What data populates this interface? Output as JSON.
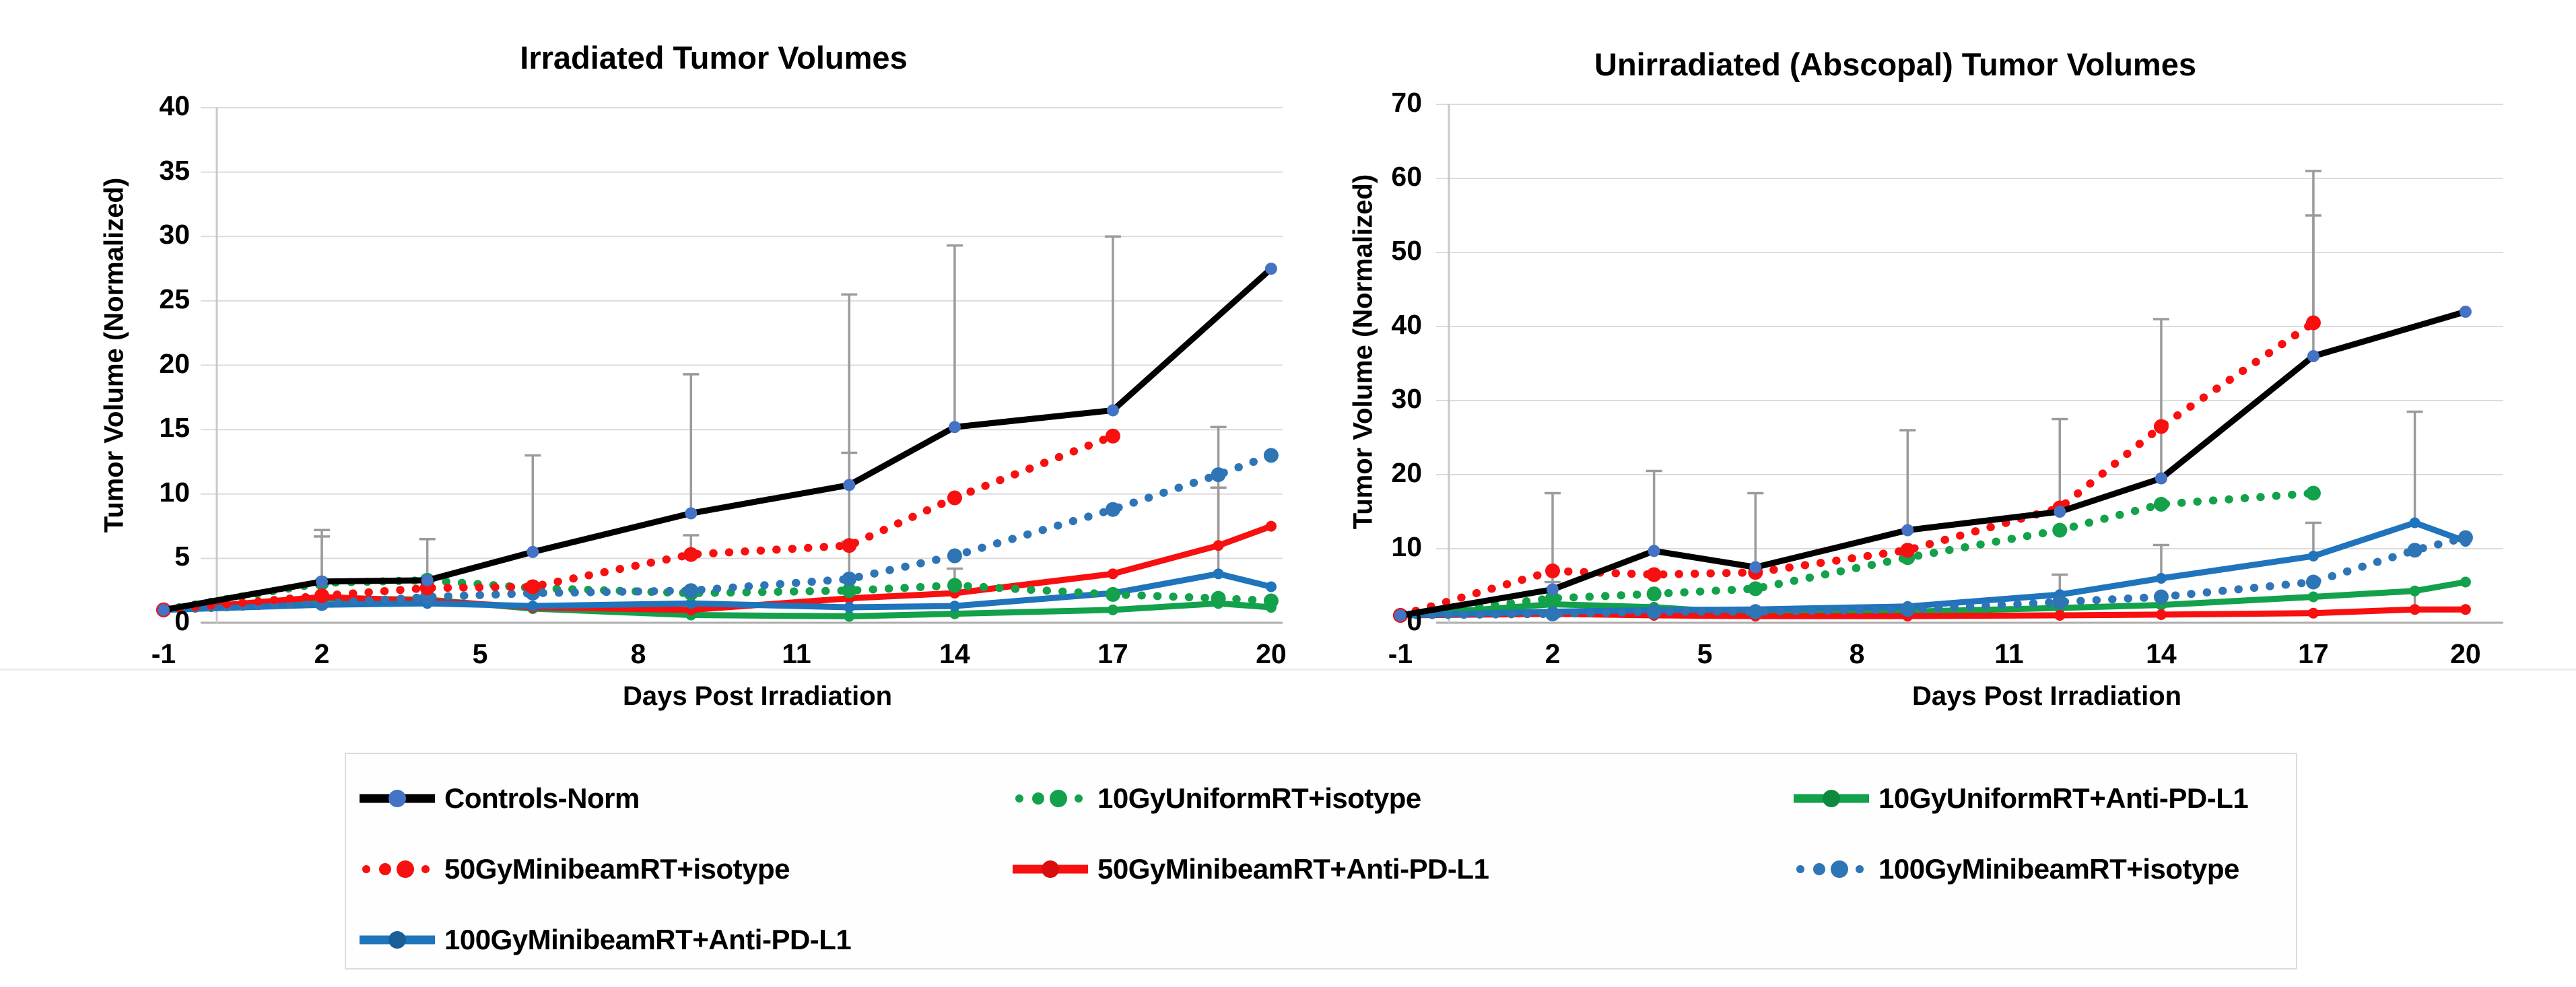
{
  "figure": {
    "background": "#ffffff",
    "accent_colors": {
      "black": "#000000",
      "green": "#13A14B",
      "red": "#F80F10",
      "blue": "#1F74BC",
      "control_marker": "#4472C4",
      "error_bar": "#9b9b9b"
    }
  },
  "chart_data": [
    {
      "type": "line",
      "title": "Irradiated Tumor Volumes",
      "ylabel": "Tumor Volume (Normalized)",
      "xlabel": "Days Post Irradiation",
      "ylim": [
        0,
        40
      ],
      "yticks": [
        0,
        5,
        10,
        15,
        20,
        25,
        30,
        35,
        40
      ],
      "xticks": [
        -1,
        2,
        5,
        8,
        11,
        14,
        17,
        20
      ],
      "grid": true,
      "x": [
        -1,
        2,
        4,
        6,
        9,
        12,
        14,
        17,
        19,
        20
      ],
      "series": [
        {
          "name": "10GyUniformRT+Anti-PD-L1",
          "color": "#13A14B",
          "style": "solid",
          "values": [
            1,
            1.9,
            1.8,
            1.1,
            0.6,
            0.5,
            0.7,
            1.0,
            1.5,
            1.2
          ],
          "err_top": [
            null,
            null,
            null,
            null,
            null,
            null,
            null,
            null,
            null,
            null
          ]
        },
        {
          "name": "50GyMinibeamRT+Anti-PD-L1",
          "color": "#F80F10",
          "style": "solid",
          "values": [
            1,
            2.0,
            1.7,
            1.2,
            1.0,
            1.9,
            2.3,
            3.8,
            6.0,
            7.5
          ],
          "err_top": [
            null,
            null,
            null,
            null,
            null,
            null,
            null,
            null,
            10.5,
            null
          ]
        },
        {
          "name": "100GyMinibeamRT+Anti-PD-L1",
          "color": "#1F74BC",
          "style": "solid",
          "values": [
            1,
            1.4,
            1.5,
            1.3,
            1.5,
            1.2,
            1.3,
            2.3,
            3.8,
            2.8
          ],
          "err_top": [
            null,
            null,
            null,
            null,
            null,
            null,
            null,
            null,
            15.2,
            null
          ]
        },
        {
          "name": "10GyUniformRT+isotype",
          "color": "#13A14B",
          "style": "dotted",
          "values": [
            1,
            3.1,
            3.3,
            2.7,
            2.3,
            2.5,
            2.9,
            2.2,
            1.9,
            1.7
          ],
          "err_top": [
            null,
            6.7,
            null,
            null,
            null,
            null,
            4.2,
            null,
            null,
            null
          ]
        },
        {
          "name": "100GyMinibeamRT+isotype",
          "color": "#2E75B6",
          "style": "dotted",
          "values": [
            1,
            1.5,
            2.0,
            2.3,
            2.5,
            3.4,
            5.2,
            8.8,
            11.5,
            13.0
          ],
          "err_top": [
            null,
            null,
            null,
            null,
            null,
            6.3,
            null,
            null,
            null,
            null
          ]
        },
        {
          "name": "50GyMinibeamRT+isotype",
          "color": "#F80F10",
          "style": "dotted",
          "values": [
            1,
            2.1,
            2.7,
            2.8,
            5.3,
            6.0,
            9.7,
            14.5,
            null,
            null
          ],
          "err_top": [
            null,
            null,
            null,
            null,
            6.8,
            13.2,
            null,
            null,
            null,
            null
          ]
        },
        {
          "name": "Controls-Norm",
          "color": "#000000",
          "style": "solid",
          "marker": "#4472C4",
          "values": [
            1,
            3.2,
            3.3,
            5.5,
            8.5,
            10.7,
            15.2,
            16.5,
            null,
            27.5
          ],
          "err_top": [
            null,
            7.2,
            6.5,
            13.0,
            19.3,
            25.5,
            29.3,
            30.0,
            null,
            null
          ]
        }
      ]
    },
    {
      "type": "line",
      "title": "Unirradiated (Abscopal) Tumor Volumes",
      "ylabel": "Tumor Volume (Normalized)",
      "xlabel": "Days Post Irradiation",
      "ylim": [
        0,
        70
      ],
      "yticks": [
        0,
        10,
        20,
        30,
        40,
        50,
        60,
        70
      ],
      "xticks": [
        -1,
        2,
        5,
        8,
        11,
        14,
        17,
        20
      ],
      "grid": true,
      "x": [
        -1,
        2,
        4,
        6,
        9,
        12,
        14,
        17,
        19,
        20
      ],
      "series": [
        {
          "name": "10GyUniformRT+Anti-PD-L1",
          "color": "#13A14B",
          "style": "solid",
          "values": [
            1,
            2.5,
            2.1,
            1.2,
            1.5,
            2.0,
            2.4,
            3.5,
            4.3,
            5.5
          ],
          "err_top": [
            null,
            null,
            null,
            null,
            null,
            null,
            null,
            null,
            null,
            null
          ]
        },
        {
          "name": "50GyMinibeamRT+Anti-PD-L1",
          "color": "#F80F10",
          "style": "solid",
          "values": [
            1,
            1.2,
            1.0,
            0.9,
            0.9,
            1.0,
            1.1,
            1.3,
            1.8,
            1.8
          ],
          "err_top": [
            null,
            null,
            null,
            null,
            null,
            null,
            null,
            null,
            4.5,
            null
          ]
        },
        {
          "name": "100GyMinibeamRT+Anti-PD-L1",
          "color": "#1F74BC",
          "style": "solid",
          "values": [
            1,
            1.5,
            1.7,
            1.8,
            2.2,
            3.8,
            6.0,
            9.0,
            13.5,
            11.0
          ],
          "err_top": [
            null,
            null,
            null,
            null,
            null,
            6.5,
            10.5,
            13.5,
            28.5,
            null
          ]
        },
        {
          "name": "10GyUniformRT+isotype",
          "color": "#13A14B",
          "style": "dotted",
          "values": [
            1,
            3.3,
            3.9,
            4.6,
            8.8,
            12.5,
            16.0,
            17.5,
            null,
            null
          ],
          "err_top": [
            null,
            5.5,
            null,
            null,
            null,
            null,
            null,
            null,
            null,
            null
          ]
        },
        {
          "name": "100GyMinibeamRT+isotype",
          "color": "#2E75B6",
          "style": "dotted",
          "values": [
            1,
            1.2,
            1.5,
            1.5,
            1.8,
            2.8,
            3.5,
            5.5,
            9.8,
            11.5
          ],
          "err_top": [
            null,
            null,
            null,
            null,
            null,
            null,
            null,
            null,
            null,
            null
          ]
        },
        {
          "name": "50GyMinibeamRT+isotype",
          "color": "#F80F10",
          "style": "dotted",
          "values": [
            1,
            7.0,
            6.5,
            6.8,
            9.8,
            15.5,
            26.5,
            40.5,
            null,
            null
          ],
          "err_top": [
            null,
            null,
            null,
            null,
            null,
            null,
            null,
            61.0,
            null,
            null
          ]
        },
        {
          "name": "Controls-Norm",
          "color": "#000000",
          "style": "solid",
          "marker": "#4472C4",
          "values": [
            1,
            4.5,
            9.7,
            7.5,
            12.5,
            15.0,
            19.5,
            36.0,
            null,
            42.0
          ],
          "err_top": [
            null,
            17.5,
            20.5,
            17.5,
            26.0,
            27.5,
            41.0,
            55.0,
            null,
            null
          ]
        }
      ]
    }
  ],
  "legend": {
    "items": [
      {
        "label": "Controls-Norm",
        "color": "#000000",
        "style": "solid",
        "marker": "#4472C4"
      },
      {
        "label": "10GyUniformRT+isotype",
        "color": "#13A14B",
        "style": "dotted",
        "marker": "#13A14B"
      },
      {
        "label": "10GyUniformRT+Anti-PD-L1",
        "color": "#13A14B",
        "style": "solid",
        "marker": "#0E8A3E"
      },
      {
        "label": "50GyMinibeamRT+isotype",
        "color": "#F80F10",
        "style": "dotted",
        "marker": "#F80F10"
      },
      {
        "label": "50GyMinibeamRT+Anti-PD-L1",
        "color": "#F80F10",
        "style": "solid",
        "marker": "#D90D0E"
      },
      {
        "label": "100GyMinibeamRT+isotype",
        "color": "#2E75B6",
        "style": "dotted",
        "marker": "#2E75B6"
      },
      {
        "label": "100GyMinibeamRT+Anti-PD-L1",
        "color": "#1F74BC",
        "style": "solid",
        "marker": "#1B5E97"
      }
    ]
  }
}
